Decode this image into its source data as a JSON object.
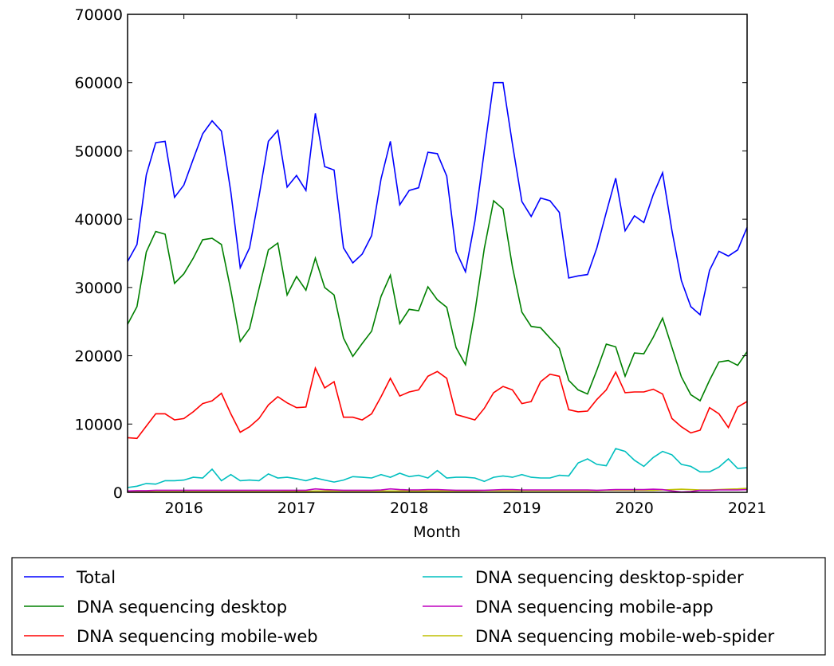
{
  "chart_data": {
    "type": "line",
    "title": "",
    "xlabel": "Month",
    "ylabel": "",
    "ylim": [
      0,
      70000
    ],
    "yticks": [
      "0",
      "10000",
      "20000",
      "30000",
      "40000",
      "50000",
      "60000",
      "70000"
    ],
    "xticks": [
      "2016",
      "2017",
      "2018",
      "2019",
      "2020",
      "2021"
    ],
    "x_start": "2015-07",
    "x_end": "2021-01",
    "x_frequency": "monthly",
    "grid": false,
    "legend_position": "below",
    "series": [
      {
        "name": "Total",
        "color": "#0000ff",
        "values": [
          33800,
          36300,
          46500,
          51200,
          51400,
          43200,
          45000,
          48800,
          52500,
          54400,
          52900,
          44000,
          32900,
          35800,
          43300,
          51400,
          53000,
          44700,
          46400,
          44200,
          55500,
          47700,
          47200,
          35800,
          33600,
          34900,
          37600,
          45900,
          51400,
          42100,
          44200,
          44600,
          49800,
          49600,
          46300,
          35300,
          32300,
          39700,
          50000,
          60000,
          60000,
          51000,
          42600,
          40400,
          43100,
          42700,
          41000,
          31400,
          31700,
          31900,
          35800,
          41000,
          46000,
          38300,
          40500,
          39500,
          43600,
          46800,
          38300,
          31000,
          27200,
          26000,
          32500,
          35300,
          34600,
          35500,
          38800
        ]
      },
      {
        "name": "DNA sequencing desktop",
        "color": "#008000",
        "values": [
          24600,
          27200,
          35200,
          38200,
          37800,
          30600,
          32000,
          34300,
          37000,
          37200,
          36300,
          29600,
          22100,
          24000,
          29800,
          35500,
          36500,
          28900,
          31600,
          29600,
          34300,
          30000,
          28900,
          22600,
          19900,
          21800,
          23600,
          28700,
          31800,
          24700,
          26800,
          26600,
          30100,
          28200,
          27100,
          21200,
          18700,
          26400,
          35700,
          42700,
          41500,
          33000,
          26400,
          24300,
          24100,
          22600,
          21100,
          16400,
          15000,
          14400,
          17900,
          21700,
          21300,
          17000,
          20400,
          20300,
          22700,
          25500,
          21200,
          16900,
          14300,
          13400,
          16400,
          19100,
          19300,
          18600,
          20600
        ]
      },
      {
        "name": "DNA sequencing mobile-web",
        "color": "#ff0000",
        "values": [
          8000,
          7900,
          9700,
          11500,
          11500,
          10600,
          10800,
          11800,
          13000,
          13400,
          14500,
          11500,
          8800,
          9600,
          10800,
          12800,
          14000,
          13100,
          12400,
          12500,
          18200,
          15300,
          16200,
          11000,
          11000,
          10600,
          11500,
          14000,
          16700,
          14100,
          14700,
          15000,
          17000,
          17700,
          16700,
          11400,
          11000,
          10600,
          12300,
          14600,
          15500,
          15000,
          13000,
          13300,
          16200,
          17300,
          17000,
          12100,
          11800,
          11900,
          13600,
          15000,
          17600,
          14600,
          14700,
          14700,
          15100,
          14400,
          10800,
          9600,
          8700,
          9100,
          12400,
          11500,
          9500,
          12500,
          13300
        ]
      },
      {
        "name": "DNA sequencing desktop-spider",
        "color": "#00bfbf",
        "values": [
          700,
          900,
          1300,
          1200,
          1700,
          1700,
          1800,
          2200,
          2100,
          3400,
          1700,
          2600,
          1700,
          1800,
          1700,
          2700,
          2100,
          2200,
          2000,
          1700,
          2100,
          1800,
          1500,
          1800,
          2300,
          2200,
          2100,
          2600,
          2200,
          2800,
          2300,
          2500,
          2100,
          3200,
          2100,
          2200,
          2200,
          2100,
          1600,
          2200,
          2400,
          2200,
          2600,
          2200,
          2100,
          2100,
          2500,
          2400,
          4300,
          4900,
          4100,
          3900,
          6400,
          6000,
          4700,
          3800,
          5100,
          6000,
          5500,
          4100,
          3800,
          3000,
          3000,
          3700,
          4900,
          3500,
          3600
        ]
      },
      {
        "name": "DNA sequencing mobile-app",
        "color": "#bf00bf",
        "values": [
          200,
          250,
          250,
          300,
          300,
          300,
          300,
          300,
          300,
          300,
          300,
          300,
          300,
          300,
          300,
          300,
          300,
          300,
          300,
          300,
          500,
          400,
          350,
          300,
          300,
          300,
          300,
          350,
          500,
          400,
          350,
          350,
          400,
          400,
          350,
          300,
          300,
          300,
          300,
          350,
          400,
          400,
          350,
          350,
          350,
          350,
          350,
          350,
          350,
          350,
          300,
          350,
          400,
          400,
          400,
          400,
          450,
          400,
          200,
          50,
          100,
          300,
          300,
          350,
          350,
          350,
          400
        ]
      },
      {
        "name": "DNA sequencing mobile-web-spider",
        "color": "#bfbf00",
        "values": [
          100,
          100,
          100,
          100,
          100,
          100,
          100,
          100,
          100,
          100,
          100,
          100,
          100,
          100,
          100,
          100,
          100,
          150,
          150,
          150,
          200,
          200,
          200,
          200,
          200,
          200,
          200,
          200,
          200,
          200,
          200,
          200,
          200,
          200,
          200,
          200,
          200,
          200,
          250,
          250,
          250,
          250,
          250,
          250,
          250,
          250,
          250,
          250,
          250,
          250,
          250,
          300,
          300,
          300,
          300,
          300,
          300,
          350,
          400,
          450,
          400,
          350,
          350,
          400,
          450,
          500,
          600
        ]
      }
    ]
  }
}
